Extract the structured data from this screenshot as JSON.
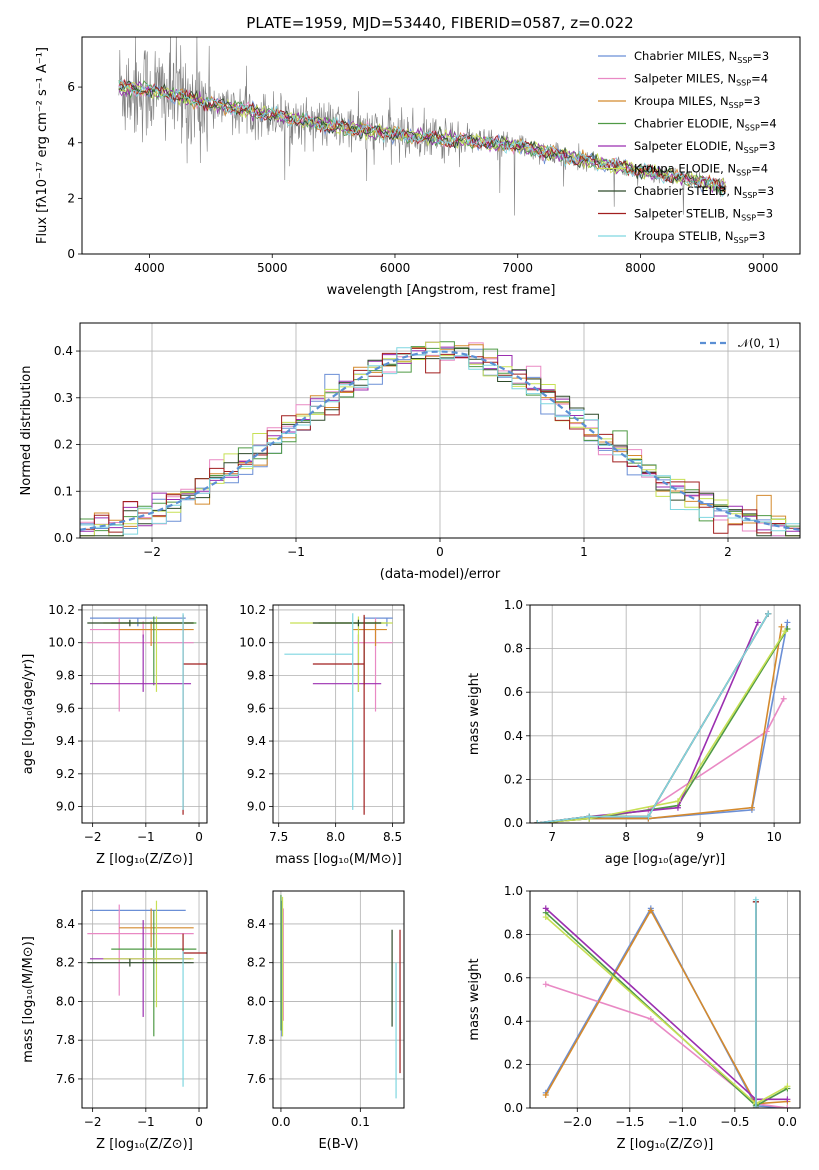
{
  "figure": {
    "title": "PLATE=1959, MJD=53440, FIBERID=0587, z=0.022"
  },
  "legend_entries": [
    {
      "label": "Chabrier MILES, N",
      "sub": "SSP",
      "suffix": "=3",
      "color": "#6b8fd6"
    },
    {
      "label": "Salpeter MILES, N",
      "sub": "SSP",
      "suffix": "=4",
      "color": "#e989c4"
    },
    {
      "label": "Kroupa MILES, N",
      "sub": "SSP",
      "suffix": "=3",
      "color": "#d48a2e"
    },
    {
      "label": "Chabrier ELODIE, N",
      "sub": "SSP",
      "suffix": "=4",
      "color": "#4f9a45"
    },
    {
      "label": "Salpeter ELODIE, N",
      "sub": "SSP",
      "suffix": "=3",
      "color": "#9b2fb0"
    },
    {
      "label": "Kroupa ELODIE, N",
      "sub": "SSP",
      "suffix": "=4",
      "color": "#c7e055"
    },
    {
      "label": "Chabrier STELIB, N",
      "sub": "SSP",
      "suffix": "=3",
      "color": "#2e4a2a"
    },
    {
      "label": "Salpeter STELIB, N",
      "sub": "SSP",
      "suffix": "=3",
      "color": "#a11f1f"
    },
    {
      "label": "Kroupa STELIB, N",
      "sub": "SSP",
      "suffix": "=3",
      "color": "#7fd6e0"
    }
  ],
  "chart_data": [
    {
      "id": "spectrum",
      "type": "line",
      "xlabel": "wavelength [Angstrom, rest frame]",
      "ylabel": "Flux [fλ10⁻¹⁷ erg cm⁻² s⁻¹ A⁻¹]",
      "xlim": [
        3450,
        9300
      ],
      "ylim": [
        0,
        7.8
      ],
      "xticks": [
        "4000",
        "5000",
        "6000",
        "7000",
        "8000",
        "9000"
      ],
      "yticks": [
        "0",
        "2",
        "4",
        "6"
      ],
      "data_color": "#808080",
      "continuum": {
        "x": [
          3750,
          4000,
          4500,
          5000,
          5500,
          6000,
          6500,
          7000,
          7500,
          8000,
          8500,
          8700
        ],
        "y": [
          6.0,
          5.9,
          5.4,
          5.0,
          4.6,
          4.3,
          4.1,
          3.9,
          3.4,
          3.0,
          2.6,
          2.4
        ]
      },
      "model_wavelength_range": [
        3750,
        8700
      ]
    },
    {
      "id": "residuals",
      "type": "step",
      "xlabel": "(data-model)/error",
      "ylabel": "Normed distribution",
      "xlim": [
        -2.5,
        2.5
      ],
      "ylim": [
        0,
        0.46
      ],
      "xticks": [
        "−2",
        "−1",
        "0",
        "1",
        "2"
      ],
      "yticks": [
        "0.0",
        "0.1",
        "0.2",
        "0.3",
        "0.4"
      ],
      "legend_label": "𝒩(0, 1)",
      "bins": 50
    },
    {
      "id": "age-vs-Z",
      "type": "errorbar",
      "xlabel": "Z [log₁₀(Z/Z⊙)]",
      "ylabel": "age  [log₁₀(age/yr)]",
      "xlim": [
        -2.2,
        0.15
      ],
      "ylim": [
        8.9,
        10.23
      ],
      "xticks": [
        "−2",
        "−1",
        "0"
      ],
      "yticks": [
        "9.0",
        "9.2",
        "9.4",
        "9.6",
        "9.8",
        "10.0",
        "10.2"
      ],
      "points": [
        {
          "s": 0,
          "x": -1.15,
          "xerr": [
            0.9,
            0.9
          ],
          "y": 10.15,
          "yerr": [
            0.05,
            0.0
          ]
        },
        {
          "s": 0,
          "x": -0.3,
          "xerr": [
            0.0,
            0.0
          ],
          "y": 9.93,
          "yerr": [
            0.0,
            0.0
          ]
        },
        {
          "s": 1,
          "x": -1.5,
          "xerr": [
            0.6,
            1.4
          ],
          "y": 10.0,
          "yerr": [
            0.42,
            0.15
          ]
        },
        {
          "s": 1,
          "x": -1.05,
          "xerr": [
            1.0,
            0.8
          ],
          "y": 10.08,
          "yerr": [
            0.05,
            0.05
          ]
        },
        {
          "s": 2,
          "x": -0.9,
          "xerr": [
            0.6,
            0.8
          ],
          "y": 10.08,
          "yerr": [
            0.1,
            0.05
          ]
        },
        {
          "s": 3,
          "x": -0.85,
          "xerr": [
            0.8,
            0.8
          ],
          "y": 10.12,
          "yerr": [
            0.38,
            0.04
          ]
        },
        {
          "s": 4,
          "x": -1.05,
          "xerr": [
            1.0,
            0.9
          ],
          "y": 9.75,
          "yerr": [
            0.05,
            0.3
          ]
        },
        {
          "s": 5,
          "x": -0.8,
          "xerr": [
            1.0,
            0.7
          ],
          "y": 10.12,
          "yerr": [
            0.42,
            0.04
          ]
        },
        {
          "s": 6,
          "x": -1.3,
          "xerr": [
            0.8,
            1.2
          ],
          "y": 10.12,
          "yerr": [
            0.02,
            0.02
          ]
        },
        {
          "s": 7,
          "x": -0.3,
          "xerr": [
            0.0,
            0.5
          ],
          "y": 9.87,
          "yerr": [
            0.92,
            0.3
          ]
        },
        {
          "s": 8,
          "x": -0.3,
          "xerr": [
            0.0,
            0.0
          ],
          "y": 9.93,
          "yerr": [
            0.95,
            0.25
          ]
        }
      ]
    },
    {
      "id": "age-vs-mass",
      "type": "errorbar",
      "xlabel": "mass [log₁₀(M/M⊙)]",
      "ylabel": "",
      "xlim": [
        7.45,
        8.6
      ],
      "ylim": [
        8.9,
        10.23
      ],
      "xticks": [
        "7.5",
        "8.0",
        "8.5"
      ],
      "yticks": [
        "9.0",
        "9.2",
        "9.4",
        "9.6",
        "9.8",
        "10.0",
        "10.2"
      ],
      "points": [
        {
          "s": 0,
          "x": 8.45,
          "xerr": [
            0.2,
            0.05
          ],
          "y": 10.15,
          "yerr": [
            0.05,
            0.0
          ]
        },
        {
          "s": 1,
          "x": 8.35,
          "xerr": [
            0.2,
            0.15
          ],
          "y": 10.0,
          "yerr": [
            0.42,
            0.15
          ]
        },
        {
          "s": 2,
          "x": 8.35,
          "xerr": [
            0.2,
            0.1
          ],
          "y": 10.08,
          "yerr": [
            0.1,
            0.05
          ]
        },
        {
          "s": 3,
          "x": 8.25,
          "xerr": [
            0.4,
            0.2
          ],
          "y": 10.12,
          "yerr": [
            0.38,
            0.04
          ]
        },
        {
          "s": 4,
          "x": 8.2,
          "xerr": [
            0.4,
            0.2
          ],
          "y": 9.75,
          "yerr": [
            0.05,
            0.3
          ]
        },
        {
          "s": 5,
          "x": 8.2,
          "xerr": [
            0.6,
            0.3
          ],
          "y": 10.12,
          "yerr": [
            0.42,
            0.04
          ]
        },
        {
          "s": 6,
          "x": 8.2,
          "xerr": [
            0.4,
            0.2
          ],
          "y": 10.12,
          "yerr": [
            0.02,
            0.02
          ]
        },
        {
          "s": 7,
          "x": 8.25,
          "xerr": [
            0.45,
            0.0
          ],
          "y": 9.87,
          "yerr": [
            0.92,
            0.3
          ]
        },
        {
          "s": 8,
          "x": 8.15,
          "xerr": [
            0.6,
            0.0
          ],
          "y": 9.93,
          "yerr": [
            0.95,
            0.25
          ]
        }
      ]
    },
    {
      "id": "weight-vs-age",
      "type": "line",
      "xlabel": "age  [log₁₀(age/yr)]",
      "ylabel": "mass weight",
      "xlim": [
        6.7,
        10.35
      ],
      "ylim": [
        0,
        1.0
      ],
      "xticks": [
        "7",
        "8",
        "9",
        "10"
      ],
      "yticks": [
        "0.0",
        "0.2",
        "0.4",
        "0.6",
        "0.8",
        "1.0"
      ],
      "series": [
        {
          "s": 0,
          "x": [
            6.8,
            7.5,
            8.3,
            9.7,
            10.18
          ],
          "y": [
            0.0,
            0.02,
            0.02,
            0.06,
            0.92
          ]
        },
        {
          "s": 1,
          "x": [
            6.8,
            7.5,
            8.3,
            9.9,
            10.13
          ],
          "y": [
            0.0,
            0.02,
            0.06,
            0.42,
            0.57
          ]
        },
        {
          "s": 2,
          "x": [
            6.8,
            7.5,
            8.3,
            9.7,
            10.1
          ],
          "y": [
            0.0,
            0.02,
            0.02,
            0.07,
            0.9
          ]
        },
        {
          "s": 3,
          "x": [
            6.8,
            7.5,
            8.7,
            10.18
          ],
          "y": [
            0.0,
            0.02,
            0.08,
            0.89
          ]
        },
        {
          "s": 4,
          "x": [
            6.8,
            7.5,
            8.7,
            9.78
          ],
          "y": [
            0.0,
            0.03,
            0.07,
            0.92
          ]
        },
        {
          "s": 5,
          "x": [
            6.8,
            7.5,
            8.7,
            10.15
          ],
          "y": [
            0.0,
            0.02,
            0.1,
            0.88
          ]
        },
        {
          "s": 6,
          "x": [
            6.8,
            7.5,
            8.3,
            9.92
          ],
          "y": [
            0.0,
            0.03,
            0.03,
            0.96
          ]
        },
        {
          "s": 7,
          "x": [
            6.8,
            7.5,
            8.3,
            9.92
          ],
          "y": [
            0.0,
            0.03,
            0.03,
            0.96
          ]
        },
        {
          "s": 8,
          "x": [
            6.8,
            7.5,
            8.3,
            9.92
          ],
          "y": [
            0.0,
            0.03,
            0.03,
            0.96
          ]
        }
      ]
    },
    {
      "id": "mass-vs-Z",
      "type": "errorbar",
      "xlabel": "Z [log₁₀(Z/Z⊙)]",
      "ylabel": "mass [log₁₀(M/M⊙)]",
      "xlim": [
        -2.2,
        0.15
      ],
      "ylim": [
        7.45,
        8.57
      ],
      "xticks": [
        "−2",
        "−1",
        "0"
      ],
      "yticks": [
        "7.6",
        "7.8",
        "8.0",
        "8.2",
        "8.4"
      ],
      "points": [
        {
          "s": 0,
          "x": -1.15,
          "xerr": [
            0.9,
            0.9
          ],
          "y": 8.47,
          "yerr": [
            0.0,
            0.0
          ]
        },
        {
          "s": 0,
          "x": -0.3,
          "xerr": [
            0.0,
            0.0
          ],
          "y": 8.18,
          "yerr": [
            0.0,
            0.0
          ]
        },
        {
          "s": 1,
          "x": -1.5,
          "xerr": [
            0.6,
            1.4
          ],
          "y": 8.35,
          "yerr": [
            0.32,
            0.15
          ]
        },
        {
          "s": 2,
          "x": -0.9,
          "xerr": [
            0.6,
            0.8
          ],
          "y": 8.38,
          "yerr": [
            0.1,
            0.1
          ]
        },
        {
          "s": 3,
          "x": -0.85,
          "xerr": [
            0.8,
            0.8
          ],
          "y": 8.27,
          "yerr": [
            0.45,
            0.2
          ]
        },
        {
          "s": 4,
          "x": -1.05,
          "xerr": [
            1.0,
            0.9
          ],
          "y": 8.22,
          "yerr": [
            0.3,
            0.2
          ]
        },
        {
          "s": 5,
          "x": -0.8,
          "xerr": [
            1.0,
            0.7
          ],
          "y": 8.22,
          "yerr": [
            0.25,
            0.3
          ]
        },
        {
          "s": 6,
          "x": -1.3,
          "xerr": [
            0.8,
            1.2
          ],
          "y": 8.2,
          "yerr": [
            0.02,
            0.02
          ]
        },
        {
          "s": 7,
          "x": -0.3,
          "xerr": [
            0.0,
            0.5
          ],
          "y": 8.25,
          "yerr": [
            0.05,
            0.1
          ]
        },
        {
          "s": 8,
          "x": -0.3,
          "xerr": [
            0.0,
            0.0
          ],
          "y": 8.16,
          "yerr": [
            0.6,
            0.1
          ]
        }
      ]
    },
    {
      "id": "mass-vs-EBV",
      "type": "errorbar",
      "xlabel": "E(B-V)",
      "ylabel": "",
      "xlim": [
        -0.01,
        0.155
      ],
      "ylim": [
        7.45,
        8.57
      ],
      "xticks": [
        "0.0",
        "0.1"
      ],
      "yticks": [
        "7.6",
        "7.8",
        "8.0",
        "8.2",
        "8.4"
      ],
      "points": [
        {
          "s": 0,
          "x": 0.001,
          "y": 8.22,
          "yerr": [
            0.4,
            0.3
          ]
        },
        {
          "s": 1,
          "x": 0.003,
          "y": 8.2,
          "yerr": [
            0.3,
            0.28
          ]
        },
        {
          "s": 3,
          "x": 0.0,
          "y": 8.25,
          "yerr": [
            0.4,
            0.3
          ]
        },
        {
          "s": 5,
          "x": 0.002,
          "y": 8.22,
          "yerr": [
            0.4,
            0.32
          ]
        },
        {
          "s": 6,
          "x": 0.14,
          "y": 8.12,
          "yerr": [
            0.25,
            0.25
          ]
        },
        {
          "s": 8,
          "x": 0.145,
          "y": 8.1,
          "yerr": [
            0.6,
            0.1
          ]
        },
        {
          "s": 7,
          "x": 0.15,
          "y": 8.0,
          "yerr": [
            0.37,
            0.37
          ]
        }
      ]
    },
    {
      "id": "weight-vs-Z",
      "type": "line",
      "xlabel": "Z [log₁₀(Z/Z⊙)]",
      "ylabel": "mass weight",
      "xlim": [
        -2.45,
        0.12
      ],
      "ylim": [
        0,
        1.0
      ],
      "xticks": [
        "−2.0",
        "−1.5",
        "−1.0",
        "−0.5",
        "0.0"
      ],
      "yticks": [
        "0.0",
        "0.2",
        "0.4",
        "0.6",
        "0.8",
        "1.0"
      ],
      "series": [
        {
          "s": 0,
          "x": [
            -2.3,
            -1.3,
            -0.3,
            0.0
          ],
          "y": [
            0.07,
            0.92,
            0.01,
            0.0
          ]
        },
        {
          "s": 1,
          "x": [
            -2.3,
            -1.3,
            -0.3,
            0.0
          ],
          "y": [
            0.57,
            0.41,
            0.02,
            0.0
          ]
        },
        {
          "s": 2,
          "x": [
            -2.3,
            -1.3,
            -0.3,
            0.0
          ],
          "y": [
            0.06,
            0.91,
            0.02,
            0.03
          ]
        },
        {
          "s": 3,
          "x": [
            -2.3,
            -0.3,
            0.0
          ],
          "y": [
            0.9,
            0.01,
            0.09
          ]
        },
        {
          "s": 4,
          "x": [
            -2.3,
            -0.3,
            0.0
          ],
          "y": [
            0.92,
            0.04,
            0.04
          ]
        },
        {
          "s": 5,
          "x": [
            -2.3,
            -0.3,
            0.0
          ],
          "y": [
            0.88,
            0.02,
            0.1
          ]
        },
        {
          "s": 6,
          "x": [
            -0.3,
            -0.3
          ],
          "y": [
            0.95,
            0.0
          ]
        },
        {
          "s": 7,
          "x": [
            -0.3,
            -0.3
          ],
          "y": [
            0.95,
            0.0
          ]
        },
        {
          "s": 8,
          "x": [
            -0.3,
            -0.3
          ],
          "y": [
            0.96,
            0.0
          ]
        }
      ]
    }
  ]
}
